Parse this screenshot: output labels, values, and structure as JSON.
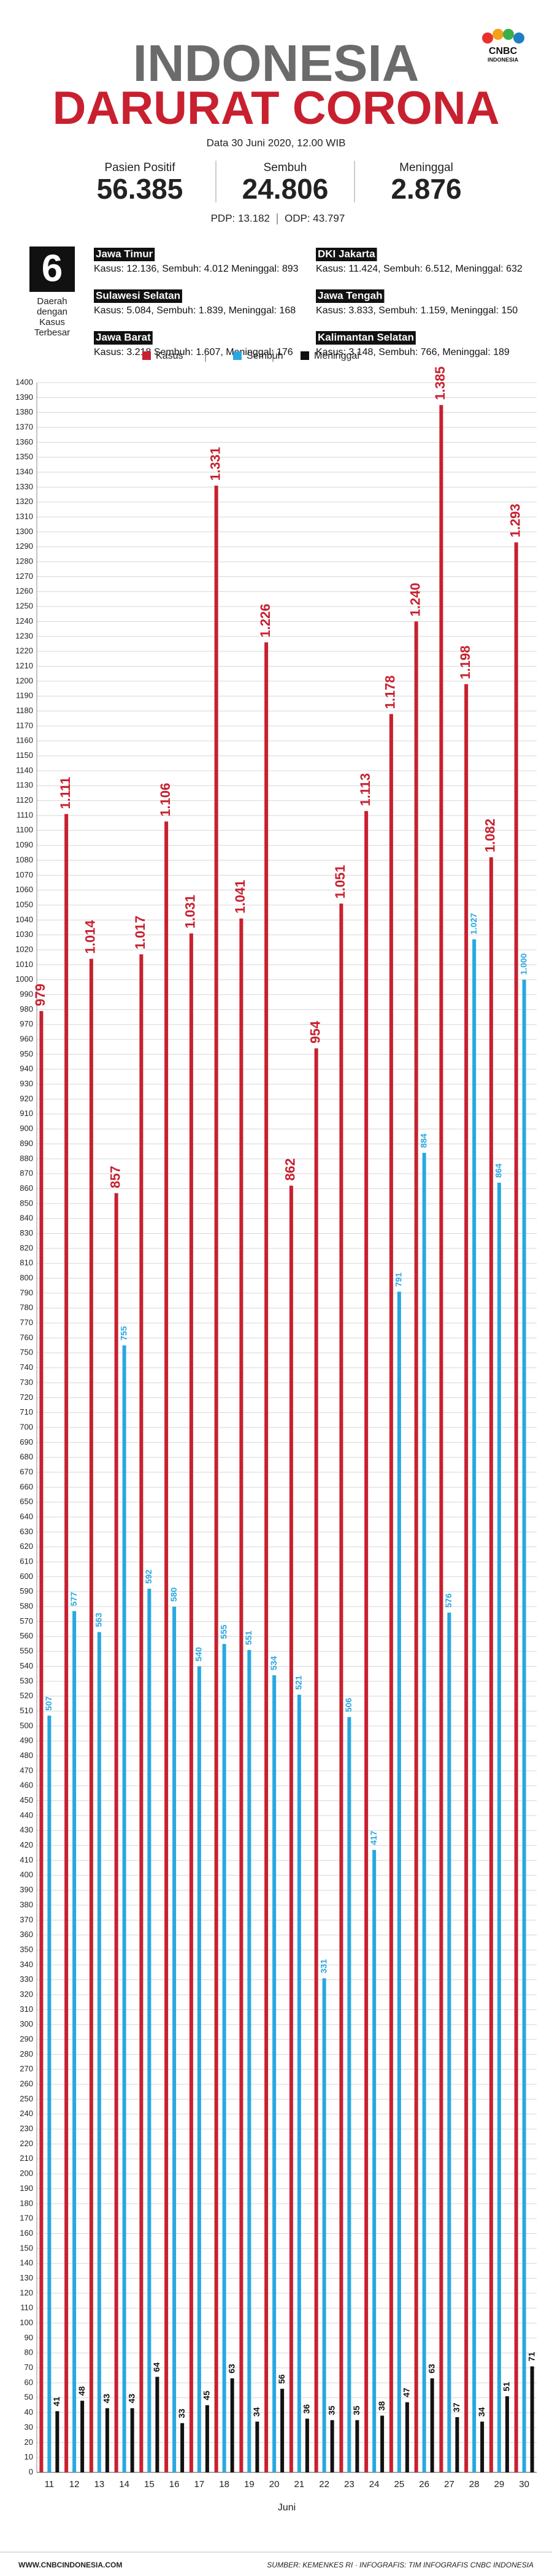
{
  "header": {
    "title_line1": "INDONESIA",
    "title_line2": "DARURAT CORONA",
    "logo_main": "CNBC",
    "logo_sub": "INDONESIA",
    "date": "Data 30 Juni 2020, 12.00 WIB"
  },
  "stats": [
    {
      "label": "Pasien Positif",
      "value": "56.385"
    },
    {
      "label": "Sembuh",
      "value": "24.806"
    },
    {
      "label": "Meninggal",
      "value": "2.876"
    }
  ],
  "pdp": "PDP: 13.182",
  "odp": "ODP: 43.797",
  "regions_box": {
    "number": "6",
    "line1": "Daerah",
    "line2": "dengan",
    "line3": "Kasus",
    "line4": "Terbesar"
  },
  "regions": [
    {
      "name": "Jawa Timur",
      "detail": "Kasus: 12.136, Sembuh: 4.012 Meninggal: 893"
    },
    {
      "name": "DKI Jakarta",
      "detail": "Kasus: 11.424, Sembuh: 6.512, Meninggal: 632"
    },
    {
      "name": "Sulawesi Selatan",
      "detail": "Kasus: 5.084, Sembuh: 1.839, Meninggal: 168"
    },
    {
      "name": "Jawa Tengah",
      "detail": "Kasus: 3.833, Sembuh: 1.159, Meninggal: 150"
    },
    {
      "name": "Jawa Barat",
      "detail": "Kasus: 3.218 Sembuh: 1.607, Meninggal: 176"
    },
    {
      "name": "Kalimantan Selatan",
      "detail": "Kasus: 3.148, Sembuh: 766, Meninggal: 189"
    }
  ],
  "chart_data": {
    "type": "bar",
    "x_label": "Juni",
    "categories": [
      "11",
      "12",
      "13",
      "14",
      "15",
      "16",
      "17",
      "18",
      "19",
      "20",
      "21",
      "22",
      "23",
      "24",
      "25",
      "26",
      "27",
      "28",
      "29",
      "30"
    ],
    "series": [
      {
        "name": "Kasus",
        "color": "#c8202f",
        "values": [
          979,
          1111,
          1014,
          857,
          1017,
          1106,
          1031,
          1331,
          1041,
          1226,
          862,
          954,
          1051,
          1113,
          1178,
          1240,
          1385,
          1198,
          1082,
          1293
        ],
        "value_labels": [
          "979",
          "1.111",
          "1.014",
          "857",
          "1.017",
          "1.106",
          "1.031",
          "1.331",
          "1.041",
          "1.226",
          "862",
          "954",
          "1.051",
          "1.113",
          "1.178",
          "1.240",
          "1.385",
          "1.198",
          "1.082",
          "1.293"
        ]
      },
      {
        "name": "Sembuh",
        "color": "#29a8e0",
        "values": [
          507,
          577,
          563,
          755,
          592,
          580,
          540,
          555,
          551,
          534,
          521,
          331,
          506,
          417,
          791,
          884,
          576,
          1027,
          864,
          1000
        ],
        "value_labels": [
          "507",
          "577",
          "563",
          "755",
          "592",
          "580",
          "540",
          "555",
          "551",
          "534",
          "521",
          "331",
          "506",
          "417",
          "791",
          "884",
          "576",
          "1.027",
          "864",
          "1.000"
        ]
      },
      {
        "name": "Meninggal",
        "color": "#111111",
        "values": [
          41,
          48,
          43,
          43,
          64,
          33,
          45,
          63,
          34,
          56,
          36,
          35,
          35,
          38,
          47,
          63,
          37,
          34,
          51,
          71
        ]
      }
    ],
    "ylim": [
      0,
      1400
    ],
    "yticks": [
      0,
      10,
      20,
      30,
      40,
      50,
      60,
      70,
      80,
      90,
      100,
      110,
      120,
      130,
      140,
      150,
      160,
      170,
      180,
      190,
      200,
      210,
      220,
      230,
      240,
      250,
      260,
      270,
      280,
      290,
      300,
      310,
      320,
      330,
      340,
      350,
      360,
      370,
      380,
      390,
      400,
      410,
      420,
      430,
      440,
      450,
      460,
      470,
      480,
      490,
      500,
      510,
      520,
      530,
      540,
      550,
      560,
      570,
      580,
      590,
      600,
      610,
      620,
      630,
      640,
      650,
      660,
      670,
      680,
      690,
      700,
      710,
      720,
      730,
      740,
      750,
      760,
      770,
      780,
      790,
      800,
      810,
      820,
      830,
      840,
      850,
      860,
      870,
      880,
      890,
      900,
      910,
      920,
      930,
      940,
      950,
      960,
      970,
      980,
      990,
      1000,
      1010,
      1020,
      1030,
      1040,
      1050,
      1060,
      1070,
      1080,
      1090,
      1100,
      1110,
      1120,
      1130,
      1140,
      1150,
      1160,
      1170,
      1180,
      1190,
      1200,
      1210,
      1220,
      1230,
      1240,
      1250,
      1260,
      1270,
      1280,
      1290,
      1300,
      1310,
      1320,
      1330,
      1340,
      1350,
      1360,
      1370,
      1380,
      1390,
      1400
    ],
    "grid": true
  },
  "footer": {
    "left": "WWW.CNBCINDONESIA.COM",
    "right": "SUMBER: KEMENKES RI · INFOGRAFIS: TIM INFOGRAFIS CNBC INDONESIA"
  }
}
